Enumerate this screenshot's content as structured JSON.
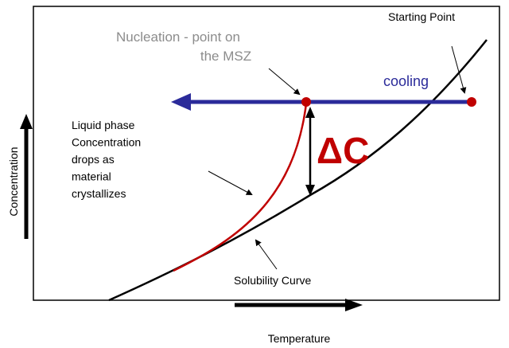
{
  "axes": {
    "x_label": "Temperature",
    "y_label": "Concentration"
  },
  "annotations": {
    "starting_point": "Starting Point",
    "nucleation": [
      "Nucleation - point on",
      "the MSZ"
    ],
    "cooling": "cooling",
    "delta_c": "ΔC",
    "liquid_phase": [
      "Liquid phase",
      "Concentration",
      "drops as",
      "material",
      "crystallizes"
    ],
    "solubility_curve": "Solubility Curve"
  }
}
